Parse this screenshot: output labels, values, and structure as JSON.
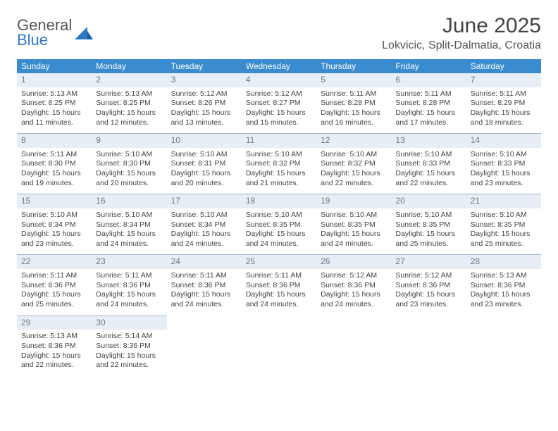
{
  "brand": {
    "text1": "General",
    "text2": "Blue"
  },
  "title": {
    "month": "June 2025",
    "location": "Lokvicic, Split-Dalmatia, Croatia"
  },
  "colors": {
    "header_bg": "#3b8bd0",
    "header_text": "#ffffff",
    "daynum_bg": "#e7eef5",
    "daynum_text": "#6a7a88",
    "row_border": "#9bb7cf",
    "body_text": "#444444",
    "brand_blue": "#2f78c3",
    "page_bg": "#ffffff"
  },
  "typography": {
    "month_fontsize": 30,
    "location_fontsize": 16,
    "weekday_fontsize": 12,
    "daynum_fontsize": 12,
    "cell_fontsize": 10.5
  },
  "weekdays": [
    "Sunday",
    "Monday",
    "Tuesday",
    "Wednesday",
    "Thursday",
    "Friday",
    "Saturday"
  ],
  "days": [
    {
      "n": "1",
      "sunrise": "5:13 AM",
      "sunset": "8:25 PM",
      "dl": "15 hours and 11 minutes."
    },
    {
      "n": "2",
      "sunrise": "5:13 AM",
      "sunset": "8:25 PM",
      "dl": "15 hours and 12 minutes."
    },
    {
      "n": "3",
      "sunrise": "5:12 AM",
      "sunset": "8:26 PM",
      "dl": "15 hours and 13 minutes."
    },
    {
      "n": "4",
      "sunrise": "5:12 AM",
      "sunset": "8:27 PM",
      "dl": "15 hours and 15 minutes."
    },
    {
      "n": "5",
      "sunrise": "5:11 AM",
      "sunset": "8:28 PM",
      "dl": "15 hours and 16 minutes."
    },
    {
      "n": "6",
      "sunrise": "5:11 AM",
      "sunset": "8:28 PM",
      "dl": "15 hours and 17 minutes."
    },
    {
      "n": "7",
      "sunrise": "5:11 AM",
      "sunset": "8:29 PM",
      "dl": "15 hours and 18 minutes."
    },
    {
      "n": "8",
      "sunrise": "5:11 AM",
      "sunset": "8:30 PM",
      "dl": "15 hours and 19 minutes."
    },
    {
      "n": "9",
      "sunrise": "5:10 AM",
      "sunset": "8:30 PM",
      "dl": "15 hours and 20 minutes."
    },
    {
      "n": "10",
      "sunrise": "5:10 AM",
      "sunset": "8:31 PM",
      "dl": "15 hours and 20 minutes."
    },
    {
      "n": "11",
      "sunrise": "5:10 AM",
      "sunset": "8:32 PM",
      "dl": "15 hours and 21 minutes."
    },
    {
      "n": "12",
      "sunrise": "5:10 AM",
      "sunset": "8:32 PM",
      "dl": "15 hours and 22 minutes."
    },
    {
      "n": "13",
      "sunrise": "5:10 AM",
      "sunset": "8:33 PM",
      "dl": "15 hours and 22 minutes."
    },
    {
      "n": "14",
      "sunrise": "5:10 AM",
      "sunset": "8:33 PM",
      "dl": "15 hours and 23 minutes."
    },
    {
      "n": "15",
      "sunrise": "5:10 AM",
      "sunset": "8:34 PM",
      "dl": "15 hours and 23 minutes."
    },
    {
      "n": "16",
      "sunrise": "5:10 AM",
      "sunset": "8:34 PM",
      "dl": "15 hours and 24 minutes."
    },
    {
      "n": "17",
      "sunrise": "5:10 AM",
      "sunset": "8:34 PM",
      "dl": "15 hours and 24 minutes."
    },
    {
      "n": "18",
      "sunrise": "5:10 AM",
      "sunset": "8:35 PM",
      "dl": "15 hours and 24 minutes."
    },
    {
      "n": "19",
      "sunrise": "5:10 AM",
      "sunset": "8:35 PM",
      "dl": "15 hours and 24 minutes."
    },
    {
      "n": "20",
      "sunrise": "5:10 AM",
      "sunset": "8:35 PM",
      "dl": "15 hours and 25 minutes."
    },
    {
      "n": "21",
      "sunrise": "5:10 AM",
      "sunset": "8:35 PM",
      "dl": "15 hours and 25 minutes."
    },
    {
      "n": "22",
      "sunrise": "5:11 AM",
      "sunset": "8:36 PM",
      "dl": "15 hours and 25 minutes."
    },
    {
      "n": "23",
      "sunrise": "5:11 AM",
      "sunset": "8:36 PM",
      "dl": "15 hours and 24 minutes."
    },
    {
      "n": "24",
      "sunrise": "5:11 AM",
      "sunset": "8:36 PM",
      "dl": "15 hours and 24 minutes."
    },
    {
      "n": "25",
      "sunrise": "5:11 AM",
      "sunset": "8:36 PM",
      "dl": "15 hours and 24 minutes."
    },
    {
      "n": "26",
      "sunrise": "5:12 AM",
      "sunset": "8:36 PM",
      "dl": "15 hours and 24 minutes."
    },
    {
      "n": "27",
      "sunrise": "5:12 AM",
      "sunset": "8:36 PM",
      "dl": "15 hours and 23 minutes."
    },
    {
      "n": "28",
      "sunrise": "5:13 AM",
      "sunset": "8:36 PM",
      "dl": "15 hours and 23 minutes."
    },
    {
      "n": "29",
      "sunrise": "5:13 AM",
      "sunset": "8:36 PM",
      "dl": "15 hours and 22 minutes."
    },
    {
      "n": "30",
      "sunrise": "5:14 AM",
      "sunset": "8:36 PM",
      "dl": "15 hours and 22 minutes."
    }
  ],
  "labels": {
    "sunrise": "Sunrise:",
    "sunset": "Sunset:",
    "daylight": "Daylight:"
  },
  "layout": {
    "start_weekday": 0,
    "total_days": 30,
    "columns": 7
  }
}
